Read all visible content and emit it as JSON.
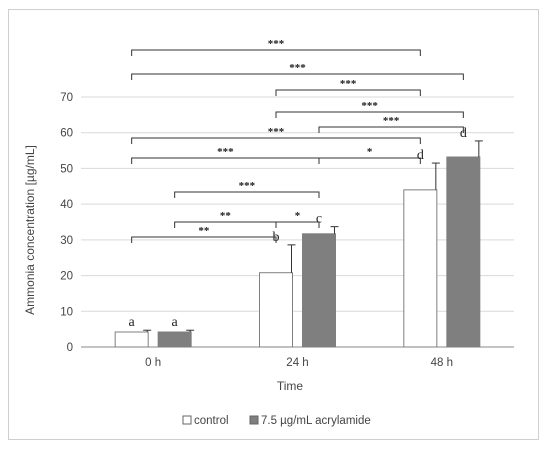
{
  "chart_data": {
    "type": "bar",
    "xlabel": "Time",
    "ylabel": "Ammonia concentration [µg/mL]",
    "ylim": [
      0,
      70
    ],
    "yticks": [
      0,
      10,
      20,
      30,
      40,
      50,
      60,
      70
    ],
    "categories": [
      "0 h",
      "24 h",
      "48 h"
    ],
    "grid": true,
    "legend_position": "bottom",
    "series": [
      {
        "name": "control",
        "color": "#ffffff",
        "values": [
          4.2,
          20.8,
          44.0
        ],
        "error": [
          0.5,
          7.8,
          7.5
        ],
        "letters": [
          "a",
          "b",
          "d"
        ]
      },
      {
        "name": "7.5 µg/mL acrylamide",
        "color": "#7f7f7f",
        "values": [
          4.2,
          31.7,
          53.2
        ],
        "error": [
          0.5,
          2.0,
          4.5
        ],
        "letters": [
          "a",
          "c",
          "d"
        ]
      }
    ],
    "significance": [
      {
        "from": "24 h control",
        "to": "24 h 7.5 µg/mL acrylamide",
        "label": "*"
      },
      {
        "from": "0 h 7.5 µg/mL acrylamide",
        "to": "24 h control",
        "label": "**"
      },
      {
        "from": "0 h control",
        "to": "24 h control",
        "label": "**"
      },
      {
        "from": "0 h 7.5 µg/mL acrylamide",
        "to": "24 h 7.5 µg/mL acrylamide",
        "label": "***"
      },
      {
        "from": "0 h control",
        "to": "24 h 7.5 µg/mL acrylamide",
        "label": "***"
      },
      {
        "from": "24 h 7.5 µg/mL acrylamide",
        "to": "48 h control",
        "label": "*"
      },
      {
        "from": "0 h control",
        "to": "48 h control",
        "label": "***"
      },
      {
        "from": "24 h 7.5 µg/mL acrylamide",
        "to": "48 h 7.5 µg/mL acrylamide",
        "label": "***"
      },
      {
        "from": "24 h control",
        "to": "48 h 7.5 µg/mL acrylamide",
        "label": "***"
      },
      {
        "from": "24 h control",
        "to": "48 h control",
        "label": "***"
      },
      {
        "from": "0 h control",
        "to": "48 h 7.5 µg/mL acrylamide",
        "label": "***"
      },
      {
        "from": "0 h control",
        "to": "48 h control",
        "label": "***"
      }
    ]
  }
}
